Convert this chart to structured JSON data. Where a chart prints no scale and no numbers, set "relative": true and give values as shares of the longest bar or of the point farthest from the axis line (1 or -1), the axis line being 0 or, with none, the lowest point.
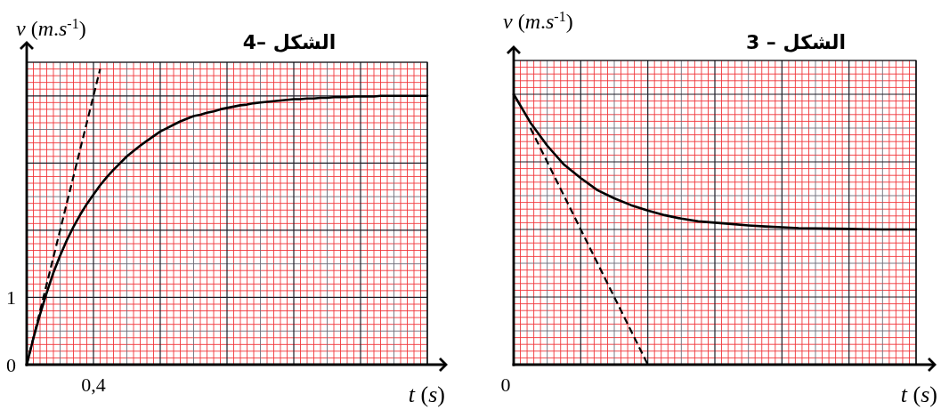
{
  "chart_data": [
    {
      "type": "line",
      "title": "الشكل –4",
      "xlabel": "t (s)",
      "ylabel": "v (m.s$^{-1}$)",
      "ylim": [
        0,
        4.5
      ],
      "categories": [
        null,
        null,
        null,
        null,
        null,
        null,
        null,
        null,
        null,
        null,
        null,
        null,
        null,
        null,
        null,
        null,
        null,
        null,
        null,
        null,
        null,
        null,
        null,
        null,
        null,
        null,
        null,
        null,
        null,
        null,
        null,
        null,
        null,
        null,
        null,
        null,
        null,
        null,
        null,
        null,
        null,
        null,
        null,
        null,
        null,
        null,
        null,
        null,
        null,
        null,
        null,
        null,
        null,
        null,
        null,
        null,
        null,
        null,
        null,
        null,
        null
      ],
      "yticks": [
        {
          "value": 0,
          "label": "0"
        },
        {
          "value": 0.1,
          "label": null
        },
        {
          "value": 0.2,
          "label": null
        },
        {
          "value": 0.3,
          "label": null
        },
        {
          "value": 0.4,
          "label": null
        },
        {
          "value": 0.5,
          "label": null
        },
        {
          "value": 0.6,
          "label": null
        },
        {
          "value": 0.7,
          "label": null
        },
        {
          "value": 0.8,
          "label": null
        },
        {
          "value": 0.9,
          "label": null
        },
        {
          "value": 1,
          "label": "1"
        },
        {
          "value": 1.1,
          "label": null
        },
        {
          "value": 1.2,
          "label": null
        },
        {
          "value": 1.3,
          "label": null
        },
        {
          "value": 1.4,
          "label": null
        },
        {
          "value": 1.5,
          "label": null
        },
        {
          "value": 1.6,
          "label": null
        },
        {
          "value": 1.7,
          "label": null
        },
        {
          "value": 1.8,
          "label": null
        },
        {
          "value": 1.9,
          "label": null
        },
        {
          "value": 2,
          "label": null
        },
        {
          "value": 2.1,
          "label": null
        },
        {
          "value": 2.2,
          "label": null
        },
        {
          "value": 2.3,
          "label": null
        },
        {
          "value": 2.4,
          "label": null
        },
        {
          "value": 2.5,
          "label": null
        },
        {
          "value": 2.6,
          "label": null
        },
        {
          "value": 2.7,
          "label": null
        },
        {
          "value": 2.8,
          "label": null
        },
        {
          "value": 2.9,
          "label": null
        },
        {
          "value": 3,
          "label": null
        },
        {
          "value": 3.1,
          "label": null
        },
        {
          "value": 3.2,
          "label": null
        },
        {
          "value": 3.3,
          "label": null
        },
        {
          "value": 3.4,
          "label": null
        },
        {
          "value": 3.5,
          "label": null
        },
        {
          "value": 3.6,
          "label": null
        },
        {
          "value": 3.7,
          "label": null
        },
        {
          "value": 3.8,
          "label": null
        },
        {
          "value": 3.9,
          "label": null
        },
        {
          "value": 4,
          "label": null
        },
        {
          "value": 4.1,
          "label": null
        },
        {
          "value": 4.2,
          "label": null
        },
        {
          "value": 4.3,
          "label": null
        },
        {
          "value": 4.4,
          "label": null
        },
        {
          "value": 4.5,
          "label": null
        }
      ],
      "grid": true,
      "annotations": [
        "0,4"
      ],
      "series": [
        {
          "color": "#000000",
          "line_style": "solid",
          "values": [
            0,
            0.39,
            0.75,
            1.07,
            1.37,
            1.62,
            1.85,
            2.05,
            2.23,
            2.39,
            2.53,
            2.67,
            2.79,
            2.9,
            3.0,
            3.1,
            3.18,
            3.26,
            3.33,
            3.4,
            3.47,
            3.52,
            3.57,
            3.62,
            3.66,
            3.7,
            3.72,
            3.75,
            3.77,
            3.8,
            3.82,
            3.84,
            3.86,
            3.87,
            3.89,
            3.9,
            3.91,
            3.92,
            3.93,
            3.94,
            3.95,
            3.95,
            3.96,
            3.96,
            3.97,
            3.97,
            3.98,
            3.98,
            3.98,
            3.99,
            3.99,
            3.99,
            3.99,
            4.0,
            4.0,
            4.0,
            4.0,
            4.0,
            4.0,
            4.0,
            4.0
          ]
        },
        {
          "color": "#000000",
          "line_style": "dashed",
          "values": [
            0,
            0.4,
            0.8,
            1.2,
            1.6,
            2.0,
            2.4,
            2.8,
            3.2,
            3.6,
            4.0,
            4.4,
            null,
            null,
            null,
            null,
            null,
            null,
            null,
            null,
            null,
            null,
            null,
            null,
            null,
            null,
            null,
            null,
            null,
            null,
            null,
            null,
            null,
            null,
            null,
            null,
            null,
            null,
            null,
            null,
            null,
            null,
            null,
            null,
            null,
            null,
            null,
            null,
            null,
            null,
            null,
            null,
            null,
            null,
            null,
            null,
            null,
            null,
            null,
            null,
            null
          ]
        }
      ]
    },
    {
      "type": "line",
      "title": "الشكل – 3",
      "xlabel": "t (s)",
      "ylabel": "v (m.s$^{-1}$)",
      "relative": true,
      "categories": [
        null,
        null,
        null,
        null,
        null,
        null,
        null,
        null,
        null,
        null,
        null,
        null,
        null,
        null,
        null,
        null,
        null,
        null,
        null,
        null,
        null,
        null,
        null,
        null,
        null
      ],
      "grid": true,
      "annotations": [
        "0"
      ],
      "series": [
        {
          "color": "#000000",
          "line_style": "solid",
          "values": [
            1.0,
            0.895,
            0.81,
            0.74,
            0.69,
            0.645,
            0.615,
            0.59,
            0.57,
            0.553,
            0.54,
            0.53,
            0.525,
            0.52,
            0.515,
            0.511,
            0.508,
            0.505,
            0.504,
            0.503,
            0.502,
            0.501,
            0.5,
            0.5,
            0.5
          ]
        },
        {
          "color": "#000000",
          "line_style": "dashed",
          "values": [
            null,
            0.875,
            0.75,
            0.625,
            0.5,
            0.375,
            0.25,
            0.125,
            0,
            null,
            null,
            null,
            null,
            null,
            null,
            null,
            null,
            null,
            null,
            null,
            null,
            null,
            null,
            null,
            null
          ]
        }
      ]
    }
  ]
}
